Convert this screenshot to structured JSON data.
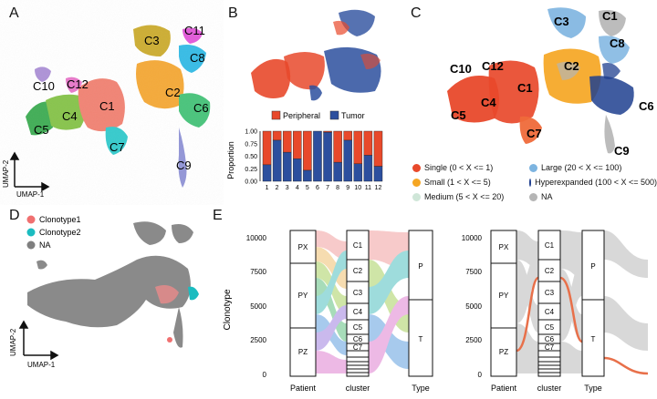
{
  "panel_labels": {
    "a": "A",
    "b": "B",
    "c": "C",
    "d": "D",
    "e": "E"
  },
  "panel_a": {
    "clusters": [
      "C1",
      "C2",
      "C3",
      "C4",
      "C5",
      "C6",
      "C7",
      "C8",
      "C9",
      "C10",
      "C11",
      "C12"
    ],
    "axis_x": "UMAP-1",
    "axis_y": "UMAP-2"
  },
  "panel_b": {
    "legend": [
      {
        "label": "Peripheral",
        "color": "#e8492b"
      },
      {
        "label": "Tumor",
        "color": "#2c4f9e"
      }
    ],
    "colors": {
      "peripheral": "#e8492b",
      "tumor": "#2c4f9e"
    }
  },
  "panel_c": {
    "clusters": [
      "C1",
      "C2",
      "C3",
      "C4",
      "C5",
      "C6",
      "C7",
      "C8",
      "C9",
      "C10",
      "C12"
    ],
    "legend": [
      {
        "label": "Single (0 < X <= 1)",
        "color": "#e8492b"
      },
      {
        "label": "Large (20 < X <= 100)",
        "color": "#7db4e0"
      },
      {
        "label": "Small (1 < X <= 5)",
        "color": "#f5a623"
      },
      {
        "label": "Hyperexpanded (100 < X <= 500)",
        "color": "#1f3f8f"
      },
      {
        "label": "Medium (5 < X <= 20)",
        "color": "#cfe6d8"
      },
      {
        "label": "NA",
        "color": "#b5b5b5"
      }
    ]
  },
  "panel_d": {
    "legend": [
      {
        "label": "Clonotype1",
        "color": "#f07070"
      },
      {
        "label": "Clonotype2",
        "color": "#1bbcc0"
      },
      {
        "label": "NA",
        "color": "#7f7f7f"
      }
    ],
    "axis_x": "UMAP-1",
    "axis_y": "UMAP-2"
  },
  "panel_e": {
    "ylabel": "Clonotype",
    "yticks": [
      "10000",
      "7500",
      "5000",
      "2500",
      "0"
    ],
    "xlabels": [
      "Patient",
      "cluster",
      "Type"
    ],
    "patients": [
      "PX",
      "PY",
      "PZ"
    ],
    "clusters": [
      "C1",
      "C2",
      "C3",
      "C4",
      "C5",
      "C6",
      "C7"
    ],
    "types": [
      "P",
      "T"
    ]
  },
  "chart_data": [
    {
      "type": "bar",
      "ylabel": "Proportion",
      "categories": [
        "1",
        "2",
        "3",
        "4",
        "5",
        "6",
        "7",
        "8",
        "9",
        "10",
        "11",
        "12"
      ],
      "series": [
        {
          "name": "Tumor",
          "values": [
            0.33,
            0.82,
            0.58,
            0.45,
            0.22,
            1.0,
            0.98,
            0.38,
            0.82,
            0.35,
            0.52,
            0.3
          ]
        },
        {
          "name": "Peripheral",
          "values": [
            0.67,
            0.18,
            0.42,
            0.55,
            0.78,
            0.0,
            0.02,
            0.62,
            0.18,
            0.65,
            0.48,
            0.7
          ]
        }
      ],
      "yticks": [
        "0.00",
        "0.25",
        "0.50",
        "0.75",
        "1.00"
      ],
      "ylim": [
        0,
        1
      ]
    }
  ]
}
